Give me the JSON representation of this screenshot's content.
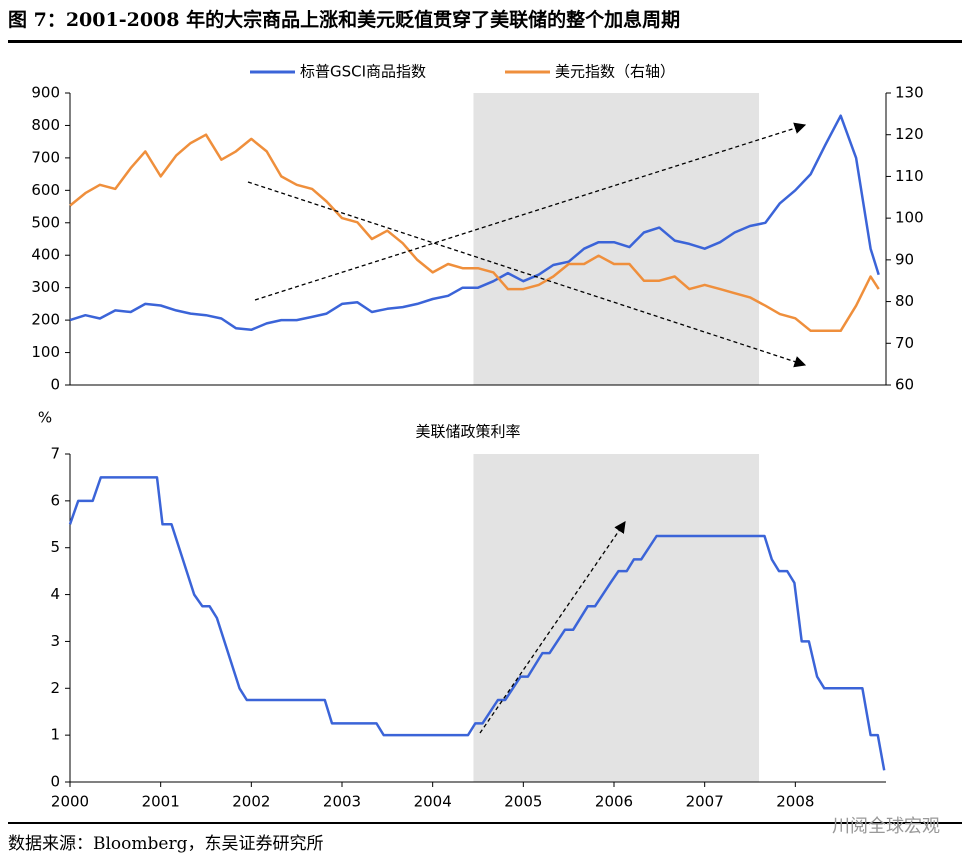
{
  "header": {
    "title": "图 7：2001-2008 年的大宗商品上涨和美元贬值贯穿了美联储的整个加息周期"
  },
  "footer": {
    "source": "数据来源：Bloomberg，东吴证券研究所",
    "watermark": "川阅全球宏观"
  },
  "chart_data": [
    {
      "type": "line",
      "xlim": [
        2000,
        2009
      ],
      "shade": [
        2004.45,
        2007.6
      ],
      "ylim": [
        0,
        900
      ],
      "yticks": [
        0,
        100,
        200,
        300,
        400,
        500,
        600,
        700,
        800,
        900
      ],
      "y2lim": [
        60,
        130
      ],
      "y2ticks": [
        60,
        70,
        80,
        90,
        100,
        110,
        120,
        130
      ],
      "x": [
        2000.0,
        2000.17,
        2000.33,
        2000.5,
        2000.67,
        2000.83,
        2001.0,
        2001.17,
        2001.33,
        2001.5,
        2001.67,
        2001.83,
        2002.0,
        2002.17,
        2002.33,
        2002.5,
        2002.67,
        2002.83,
        2003.0,
        2003.17,
        2003.33,
        2003.5,
        2003.67,
        2003.83,
        2004.0,
        2004.17,
        2004.33,
        2004.5,
        2004.67,
        2004.83,
        2005.0,
        2005.17,
        2005.33,
        2005.5,
        2005.67,
        2005.83,
        2006.0,
        2006.17,
        2006.33,
        2006.5,
        2006.67,
        2006.83,
        2007.0,
        2007.17,
        2007.33,
        2007.5,
        2007.67,
        2007.83,
        2008.0,
        2008.17,
        2008.33,
        2008.5,
        2008.67,
        2008.83,
        2008.92
      ],
      "series": [
        {
          "name": "标普GSCI商品指数",
          "color": "#3b64d8",
          "values": [
            200,
            215,
            205,
            230,
            225,
            250,
            245,
            230,
            220,
            215,
            205,
            175,
            170,
            190,
            200,
            200,
            210,
            220,
            250,
            255,
            225,
            235,
            240,
            250,
            265,
            275,
            300,
            300,
            320,
            345,
            320,
            340,
            370,
            380,
            420,
            440,
            440,
            425,
            470,
            485,
            445,
            435,
            420,
            440,
            470,
            490,
            500,
            560,
            600,
            650,
            740,
            830,
            700,
            420,
            340
          ]
        },
        {
          "name": "美元指数（右轴）",
          "color": "#ef8f3c",
          "axis": "y2",
          "values": [
            103,
            106,
            108,
            107,
            112,
            116,
            110,
            115,
            118,
            120,
            114,
            116,
            119,
            116,
            110,
            108,
            107,
            104,
            100,
            99,
            95,
            97,
            94,
            90,
            87,
            89,
            88,
            88,
            87,
            83,
            83,
            84,
            86,
            89,
            89,
            91,
            89,
            89,
            85,
            85,
            86,
            83,
            84,
            83,
            82,
            81,
            79,
            77,
            76,
            73,
            73,
            73,
            79,
            86,
            83
          ]
        }
      ]
    },
    {
      "type": "line",
      "title": "美联储政策利率",
      "y_label": "%",
      "xlim": [
        2000,
        2009
      ],
      "xticks": [
        2000,
        2001,
        2002,
        2003,
        2004,
        2005,
        2006,
        2007,
        2008
      ],
      "shade": [
        2004.45,
        2007.6
      ],
      "ylim": [
        0,
        7
      ],
      "yticks": [
        0,
        1,
        2,
        3,
        4,
        5,
        6,
        7
      ],
      "x": [
        2000.0,
        2000.09,
        2000.25,
        2000.34,
        2000.96,
        2001.02,
        2001.12,
        2001.37,
        2001.46,
        2001.54,
        2001.62,
        2001.87,
        2001.95,
        2002.81,
        2002.89,
        2003.38,
        2003.46,
        2004.39,
        2004.47,
        2004.55,
        2004.72,
        2004.8,
        2004.97,
        2005.05,
        2005.21,
        2005.29,
        2005.46,
        2005.55,
        2005.71,
        2005.79,
        2005.96,
        2006.05,
        2006.14,
        2006.22,
        2006.3,
        2006.47,
        2007.66,
        2007.74,
        2007.82,
        2007.91,
        2007.99,
        2008.07,
        2008.15,
        2008.24,
        2008.32,
        2008.74,
        2008.83,
        2008.91,
        2008.98
      ],
      "series": [
        {
          "color": "#3b64d8",
          "values": [
            5.5,
            6.0,
            6.0,
            6.5,
            6.5,
            5.5,
            5.5,
            4.0,
            3.75,
            3.75,
            3.5,
            2.0,
            1.75,
            1.75,
            1.25,
            1.25,
            1.0,
            1.0,
            1.25,
            1.25,
            1.75,
            1.75,
            2.25,
            2.25,
            2.75,
            2.75,
            3.25,
            3.25,
            3.75,
            3.75,
            4.25,
            4.5,
            4.5,
            4.75,
            4.75,
            5.25,
            5.25,
            4.75,
            4.5,
            4.5,
            4.25,
            3.0,
            3.0,
            2.25,
            2.0,
            2.0,
            1.0,
            1.0,
            0.25
          ]
        }
      ]
    }
  ]
}
